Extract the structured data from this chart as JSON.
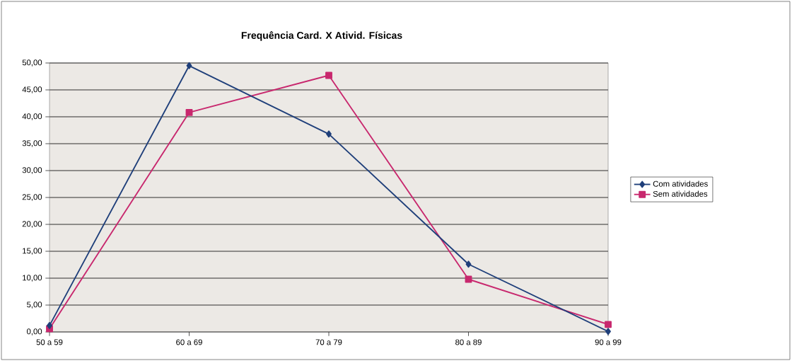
{
  "chart_data": {
    "type": "line",
    "title": "Frequência Card. X Ativid. Físicas",
    "categories": [
      "50 a 59",
      "60 a 69",
      "70 a 79",
      "80 a 89",
      "90 a 99"
    ],
    "series": [
      {
        "name": "Com atividades",
        "color": "#1f3f7a",
        "marker": "diamond",
        "values": [
          1.2,
          49.5,
          36.8,
          12.6,
          0.1
        ]
      },
      {
        "name": "Sem atividades",
        "color": "#c8286e",
        "marker": "square",
        "values": [
          0.6,
          40.8,
          47.7,
          9.8,
          1.4
        ]
      }
    ],
    "ylim": [
      0,
      50
    ],
    "yticks": [
      {
        "value": 0,
        "label": "0,00"
      },
      {
        "value": 5,
        "label": "5,00"
      },
      {
        "value": 10,
        "label": "10,00"
      },
      {
        "value": 15,
        "label": "15,00"
      },
      {
        "value": 20,
        "label": "20,00"
      },
      {
        "value": 25,
        "label": "25,00"
      },
      {
        "value": 30,
        "label": "30,00"
      },
      {
        "value": 35,
        "label": "35,00"
      },
      {
        "value": 40,
        "label": "40,00"
      },
      {
        "value": 45,
        "label": "45,00"
      },
      {
        "value": 50,
        "label": "50,00"
      }
    ],
    "grid": "y",
    "legend": "right",
    "line_style": "solid"
  }
}
